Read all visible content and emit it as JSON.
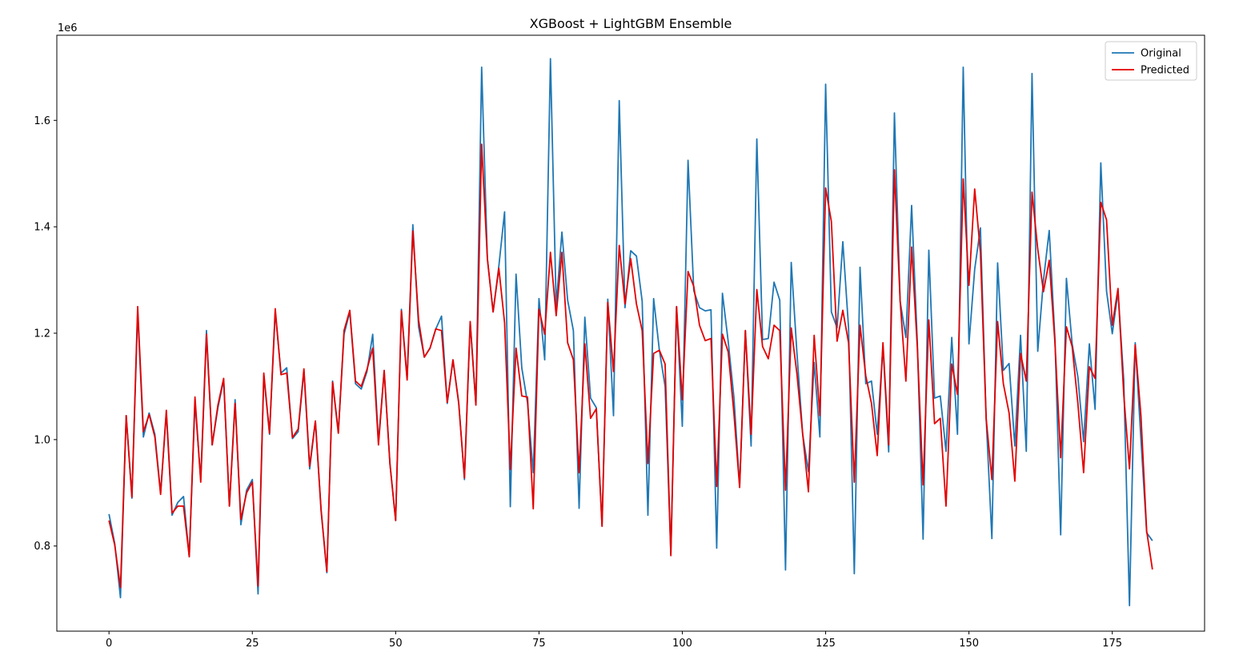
{
  "chart_data": {
    "type": "line",
    "title": "XGBoost + LightGBM Ensemble",
    "xlabel": "",
    "ylabel": "",
    "y_offset_label": "1e6",
    "xlim": [
      -9.1,
      191.1
    ],
    "ylim": [
      0.64,
      1.76
    ],
    "x_ticks": [
      0,
      25,
      50,
      75,
      100,
      125,
      150,
      175
    ],
    "y_ticks": [
      0.8,
      1.0,
      1.2,
      1.4,
      1.6
    ],
    "y_tick_labels": [
      "0.8",
      "1.0",
      "1.2",
      "1.4",
      "1.6"
    ],
    "grid": false,
    "legend_position": "upper right",
    "series": [
      {
        "name": "Original",
        "color": "#1f77b4",
        "values": [
          0.86,
          0.805,
          0.703,
          1.045,
          0.89,
          1.24,
          1.005,
          1.05,
          1.01,
          0.9,
          1.05,
          0.858,
          0.882,
          0.893,
          0.78,
          1.07,
          0.925,
          1.205,
          0.99,
          1.06,
          1.112,
          0.875,
          1.075,
          0.84,
          0.905,
          0.925,
          0.71,
          1.12,
          1.01,
          1.24,
          1.125,
          1.135,
          1.002,
          1.015,
          1.13,
          0.945,
          1.035,
          0.865,
          0.75,
          1.11,
          1.015,
          1.198,
          1.24,
          1.105,
          1.095,
          1.128,
          1.198,
          0.995,
          1.13,
          0.955,
          0.848,
          1.245,
          1.115,
          1.404,
          1.212,
          1.155,
          1.172,
          1.208,
          1.232,
          1.068,
          1.15,
          1.07,
          0.925,
          1.22,
          1.065,
          1.7,
          1.34,
          1.24,
          1.326,
          1.428,
          0.874,
          1.311,
          1.135,
          1.069,
          0.938,
          1.265,
          1.15,
          1.716,
          1.251,
          1.39,
          1.262,
          1.205,
          0.871,
          1.23,
          1.078,
          1.06,
          0.838,
          1.264,
          1.045,
          1.637,
          1.248,
          1.355,
          1.345,
          1.26,
          0.858,
          1.265,
          1.168,
          1.1,
          0.785,
          1.25,
          1.025,
          1.525,
          1.28,
          1.248,
          1.242,
          1.244,
          0.796,
          1.275,
          1.185,
          1.08,
          0.913,
          1.205,
          0.988,
          1.565,
          1.188,
          1.19,
          1.296,
          1.262,
          0.755,
          1.333,
          1.162,
          1.01,
          0.94,
          1.145,
          1.005,
          1.668,
          1.24,
          1.21,
          1.372,
          1.21,
          0.748,
          1.324,
          1.105,
          1.11,
          1.01,
          1.175,
          0.977,
          1.614,
          1.26,
          1.192,
          1.44,
          1.182,
          0.813,
          1.356,
          1.078,
          1.082,
          0.978,
          1.192,
          1.01,
          1.7,
          1.18,
          1.32,
          1.398,
          1.04,
          0.814,
          1.332,
          1.13,
          1.143,
          0.988,
          1.196,
          0.978,
          1.688,
          1.166,
          1.3,
          1.393,
          1.19,
          0.821,
          1.303,
          1.18,
          1.118,
          0.996,
          1.18,
          1.057,
          1.52,
          1.279,
          1.199,
          1.278,
          1.112,
          0.688,
          1.182,
          1.0,
          0.825,
          0.81
        ]
      },
      {
        "name": "Predicted",
        "color": "#e50000",
        "values": [
          0.848,
          0.802,
          0.722,
          1.045,
          0.892,
          1.25,
          1.015,
          1.047,
          1.005,
          0.897,
          1.055,
          0.862,
          0.875,
          0.875,
          0.78,
          1.08,
          0.92,
          1.198,
          0.99,
          1.065,
          1.115,
          0.875,
          1.068,
          0.85,
          0.9,
          0.92,
          0.725,
          1.125,
          1.012,
          1.246,
          1.122,
          1.125,
          1.004,
          1.02,
          1.133,
          0.95,
          1.035,
          0.868,
          0.752,
          1.108,
          1.012,
          1.205,
          1.243,
          1.11,
          1.1,
          1.132,
          1.172,
          0.99,
          1.13,
          0.955,
          0.848,
          1.242,
          1.112,
          1.392,
          1.225,
          1.155,
          1.172,
          1.208,
          1.205,
          1.07,
          1.15,
          1.068,
          0.928,
          1.222,
          1.065,
          1.555,
          1.34,
          1.24,
          1.322,
          1.22,
          0.944,
          1.172,
          1.082,
          1.08,
          0.87,
          1.245,
          1.198,
          1.352,
          1.233,
          1.352,
          1.182,
          1.15,
          0.938,
          1.18,
          1.04,
          1.058,
          0.837,
          1.258,
          1.128,
          1.365,
          1.255,
          1.34,
          1.255,
          1.205,
          0.955,
          1.162,
          1.168,
          1.142,
          0.782,
          1.25,
          1.075,
          1.316,
          1.288,
          1.215,
          1.186,
          1.19,
          0.912,
          1.198,
          1.165,
          1.05,
          0.91,
          1.205,
          1.01,
          1.282,
          1.175,
          1.152,
          1.215,
          1.205,
          0.905,
          1.21,
          1.123,
          1.01,
          0.902,
          1.196,
          1.045,
          1.473,
          1.41,
          1.185,
          1.243,
          1.182,
          0.92,
          1.215,
          1.12,
          1.068,
          0.97,
          1.182,
          0.99,
          1.507,
          1.26,
          1.11,
          1.362,
          1.172,
          0.915,
          1.225,
          1.03,
          1.04,
          0.875,
          1.142,
          1.085,
          1.49,
          1.29,
          1.471,
          1.352,
          1.04,
          0.925,
          1.222,
          1.105,
          1.05,
          0.922,
          1.162,
          1.11,
          1.465,
          1.358,
          1.278,
          1.337,
          1.182,
          0.966,
          1.212,
          1.175,
          1.068,
          0.938,
          1.137,
          1.115,
          1.446,
          1.413,
          1.215,
          1.284,
          1.085,
          0.945,
          1.178,
          1.045,
          0.828,
          0.756
        ]
      }
    ]
  }
}
